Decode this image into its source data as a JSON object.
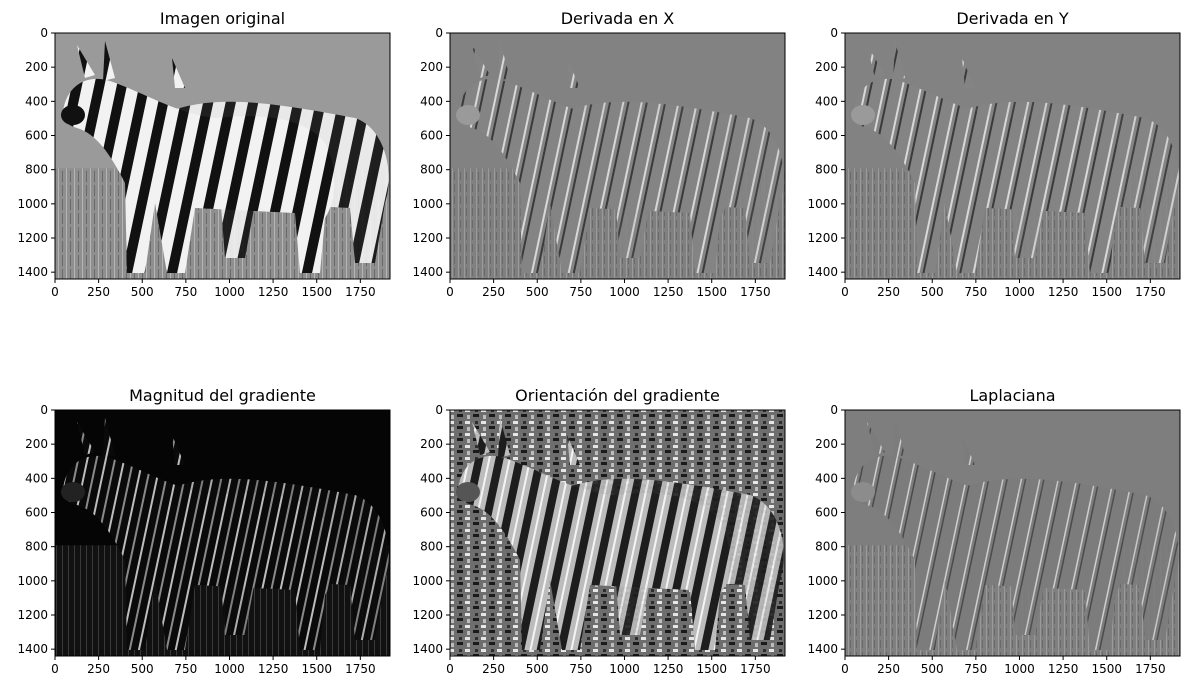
{
  "chart_data": [
    {
      "type": "image",
      "title": "Imagen original",
      "image": "grayscale photo of zebras in grass",
      "xticks": [
        "0",
        "250",
        "500",
        "750",
        "1000",
        "1250",
        "1500",
        "1750"
      ],
      "yticks": [
        "0",
        "200",
        "400",
        "600",
        "800",
        "1000",
        "1200",
        "1400"
      ],
      "xlim": [
        0,
        1920
      ],
      "ylim": [
        1440,
        0
      ],
      "colormap": "gray"
    },
    {
      "type": "image",
      "title": "Derivada en X",
      "image": "horizontal derivative of zebra image (gray background, light/dark edges)",
      "xticks": [
        "0",
        "250",
        "500",
        "750",
        "1000",
        "1250",
        "1500",
        "1750"
      ],
      "yticks": [
        "0",
        "200",
        "400",
        "600",
        "800",
        "1000",
        "1200",
        "1400"
      ],
      "xlim": [
        0,
        1920
      ],
      "ylim": [
        1440,
        0
      ],
      "colormap": "gray"
    },
    {
      "type": "image",
      "title": "Derivada en Y",
      "image": "vertical derivative of zebra image (gray background, light/dark edges)",
      "xticks": [
        "0",
        "250",
        "500",
        "750",
        "1000",
        "1250",
        "1500",
        "1750"
      ],
      "yticks": [
        "0",
        "200",
        "400",
        "600",
        "800",
        "1000",
        "1200",
        "1400"
      ],
      "xlim": [
        0,
        1920
      ],
      "ylim": [
        1440,
        0
      ],
      "colormap": "gray"
    },
    {
      "type": "image",
      "title": "Magnitud del gradiente",
      "image": "gradient magnitude (black background, white edges)",
      "xticks": [
        "0",
        "250",
        "500",
        "750",
        "1000",
        "1250",
        "1500",
        "1750"
      ],
      "yticks": [
        "0",
        "200",
        "400",
        "600",
        "800",
        "1000",
        "1200",
        "1400"
      ],
      "xlim": [
        0,
        1920
      ],
      "ylim": [
        1440,
        0
      ],
      "colormap": "gray"
    },
    {
      "type": "image",
      "title": "Orientación del gradiente",
      "image": "gradient orientation (noisy texture, zebra stripes visible)",
      "xticks": [
        "0",
        "250",
        "500",
        "750",
        "1000",
        "1250",
        "1500",
        "1750"
      ],
      "yticks": [
        "0",
        "200",
        "400",
        "600",
        "800",
        "1000",
        "1200",
        "1400"
      ],
      "xlim": [
        0,
        1920
      ],
      "ylim": [
        1440,
        0
      ],
      "colormap": "gray"
    },
    {
      "type": "image",
      "title": "Laplaciana",
      "image": "Laplacian of zebra image (gray background, thin edges)",
      "xticks": [
        "0",
        "250",
        "500",
        "750",
        "1000",
        "1250",
        "1500",
        "1750"
      ],
      "yticks": [
        "0",
        "200",
        "400",
        "600",
        "800",
        "1000",
        "1200",
        "1400"
      ],
      "xlim": [
        0,
        1920
      ],
      "ylim": [
        1440,
        0
      ],
      "colormap": "gray"
    }
  ]
}
